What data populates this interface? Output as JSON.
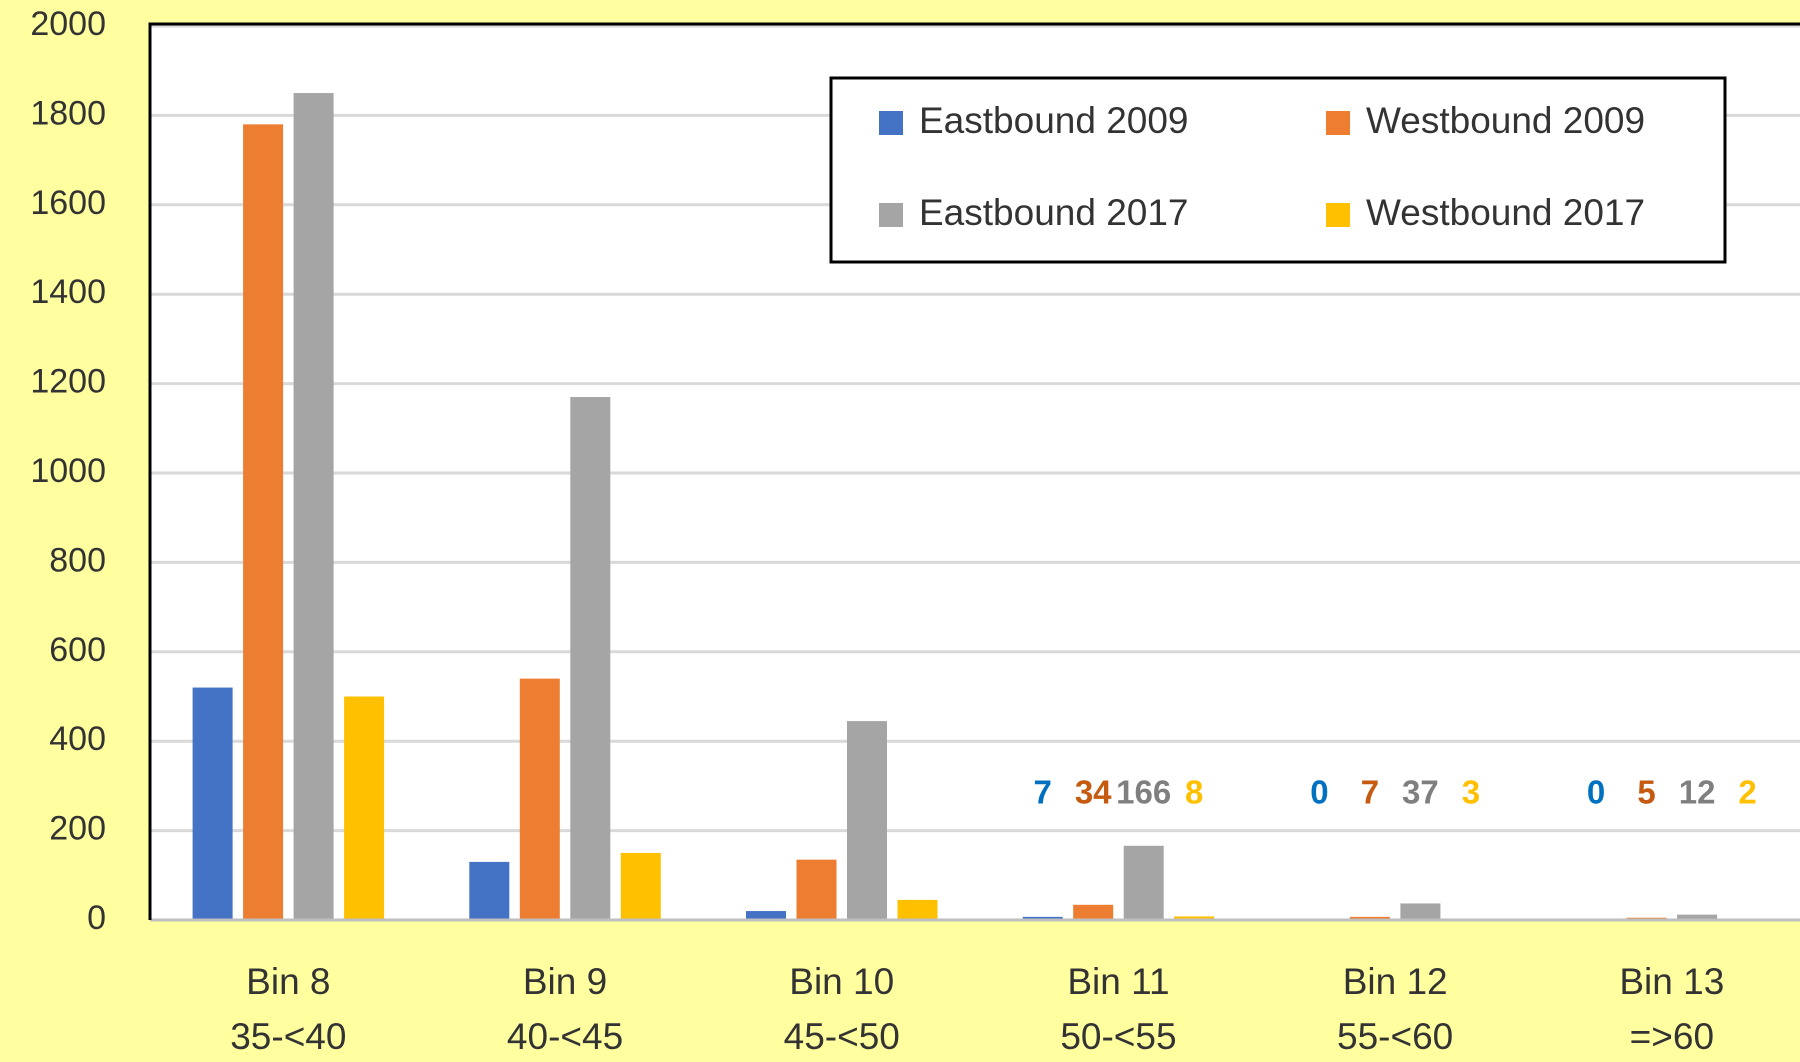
{
  "chart_data": {
    "type": "bar",
    "categories": [
      [
        "Bin 8",
        "35-<40"
      ],
      [
        "Bin 9",
        "40-<45"
      ],
      [
        "Bin 10",
        "45-<50"
      ],
      [
        "Bin 11",
        "50-<55"
      ],
      [
        "Bin 12",
        "55-<60"
      ],
      [
        "Bin 13",
        "=>60"
      ]
    ],
    "series": [
      {
        "name": "Eastbound 2009",
        "color": "#4472c4",
        "label_color": "#0070c0",
        "values": [
          520,
          130,
          20,
          7,
          0,
          0
        ],
        "value_labels": [
          null,
          null,
          null,
          "7",
          "0",
          "0"
        ]
      },
      {
        "name": "Westbound 2009",
        "color": "#ed7d31",
        "label_color": "#c55a11",
        "values": [
          1780,
          540,
          135,
          34,
          7,
          5
        ],
        "value_labels": [
          null,
          null,
          null,
          "34",
          "7",
          "5"
        ]
      },
      {
        "name": "Eastbound 2017",
        "color": "#a5a5a5",
        "label_color": "#7f7f7f",
        "values": [
          1850,
          1170,
          445,
          166,
          37,
          12
        ],
        "value_labels": [
          null,
          null,
          null,
          "166",
          "37",
          "12"
        ]
      },
      {
        "name": "Westbound 2017",
        "color": "#ffc000",
        "label_color": "#ffc000",
        "values": [
          500,
          150,
          45,
          8,
          3,
          2
        ],
        "value_labels": [
          null,
          null,
          null,
          "8",
          "3",
          "2"
        ]
      }
    ],
    "ylim": [
      0,
      2000
    ],
    "yticks": [
      0,
      200,
      400,
      600,
      800,
      1000,
      1200,
      1400,
      1600,
      1800,
      2000
    ],
    "grid": true,
    "legend": "upper right"
  }
}
